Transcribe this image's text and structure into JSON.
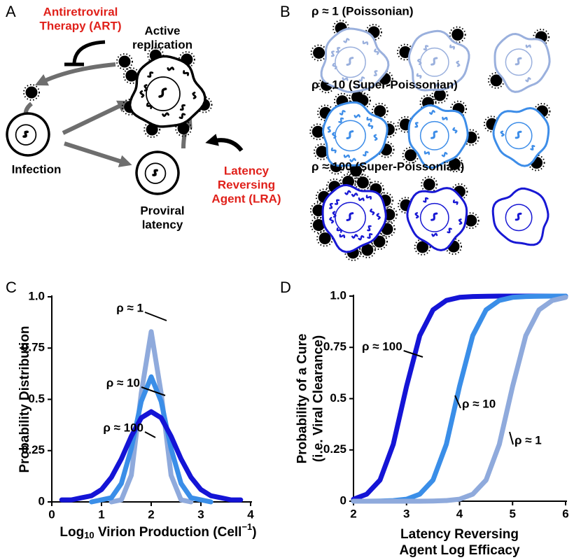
{
  "panels": {
    "A": {
      "letter": "A",
      "art": [
        "Antiretroviral",
        "Therapy (ART)"
      ],
      "active": [
        "Active",
        "replication"
      ],
      "infection": "Infection",
      "latency": [
        "Proviral",
        "latency"
      ],
      "lra": [
        "Latency",
        "Reversing",
        "Agent (LRA)"
      ]
    },
    "B": {
      "letter": "B",
      "rows": [
        "ρ ≈ 1 (Poissonian)",
        "ρ ≈ 10 (Super-Poissonian)",
        "ρ ≈ 100 (Super-Poissonian)"
      ]
    }
  },
  "chart_data": [
    {
      "type": "line",
      "panel_label": "C",
      "xlabel": [
        "Log",
        "10",
        " Virion Production (Cell",
        "−1",
        ")"
      ],
      "ylabel": [
        "Probability Distribution"
      ],
      "x": [
        0.2,
        0.4,
        0.6,
        0.8,
        1.0,
        1.2,
        1.4,
        1.6,
        1.8,
        2.0,
        2.2,
        2.4,
        2.6,
        2.8,
        3.0,
        3.2,
        3.4,
        3.6,
        3.8
      ],
      "series": [
        {
          "name": "ρ ≈ 1",
          "color": "#8faadc",
          "values": [
            null,
            null,
            null,
            null,
            null,
            0.0,
            0.01,
            0.13,
            0.53,
            0.83,
            0.53,
            0.13,
            0.01,
            0.0,
            null,
            null,
            null,
            null,
            null
          ]
        },
        {
          "name": "ρ ≈ 10",
          "color": "#3a8ee8",
          "values": [
            null,
            null,
            null,
            0.0,
            0.01,
            0.02,
            0.09,
            0.26,
            0.49,
            0.61,
            0.49,
            0.26,
            0.09,
            0.02,
            0.01,
            0.0,
            null,
            null,
            null
          ]
        },
        {
          "name": "ρ ≈ 100",
          "color": "#1414d6",
          "values": [
            0.01,
            0.01,
            0.02,
            0.03,
            0.06,
            0.12,
            0.21,
            0.32,
            0.41,
            0.44,
            0.41,
            0.32,
            0.21,
            0.12,
            0.06,
            0.03,
            0.02,
            0.01,
            0.01
          ]
        }
      ],
      "xlim": [
        0,
        4
      ],
      "xticks": [
        0,
        1,
        2,
        3,
        4
      ],
      "ylim": [
        0,
        1
      ],
      "yticks": [
        0,
        0.25,
        0.5,
        0.75,
        {
          "value": 1,
          "label": "1.0"
        }
      ],
      "grid": false
    },
    {
      "type": "line",
      "panel_label": "D",
      "xlabel": [
        "Latency Reversing",
        "Agent Log Efficacy"
      ],
      "ylabel": [
        "Probability of a Cure",
        "(i.e. Viral Clearance)"
      ],
      "x": [
        2.0,
        2.25,
        2.5,
        2.75,
        3.0,
        3.25,
        3.5,
        3.75,
        4.0,
        4.25,
        4.5,
        4.75,
        5.0,
        5.25,
        5.5,
        5.75,
        6.0
      ],
      "series": [
        {
          "name": "ρ ≈ 100",
          "color": "#1414d6",
          "values": [
            0.01,
            0.034,
            0.103,
            0.277,
            0.56,
            0.808,
            0.933,
            0.979,
            0.994,
            0.998,
            0.999,
            1,
            1,
            1,
            1,
            1,
            1
          ]
        },
        {
          "name": "ρ ≈ 10",
          "color": "#3a8ee8",
          "values": [
            0,
            0,
            0.001,
            0.003,
            0.01,
            0.034,
            0.103,
            0.277,
            0.56,
            0.808,
            0.933,
            0.979,
            0.994,
            0.998,
            0.999,
            1,
            1
          ]
        },
        {
          "name": "ρ ≈ 1",
          "color": "#8faadc",
          "values": [
            0,
            0,
            0,
            0,
            0,
            0,
            0.001,
            0.003,
            0.01,
            0.034,
            0.103,
            0.277,
            0.56,
            0.808,
            0.933,
            0.979,
            0.994
          ]
        }
      ],
      "xlim": [
        2,
        6
      ],
      "xticks": [
        2,
        3,
        4,
        5,
        6
      ],
      "ylim": [
        0,
        1
      ],
      "yticks": [
        0,
        0.25,
        0.5,
        0.75,
        {
          "value": 1,
          "label": "1.0"
        }
      ],
      "grid": false
    }
  ]
}
